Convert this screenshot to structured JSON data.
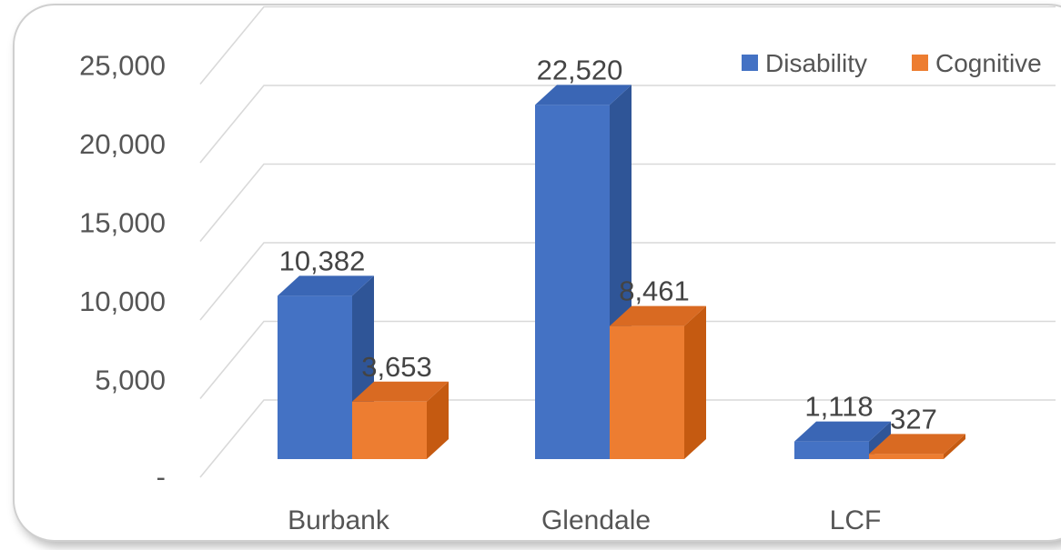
{
  "chart_data": {
    "type": "bar",
    "categories": [
      "Burbank",
      "Glendale",
      "LCF"
    ],
    "series": [
      {
        "name": "Disability",
        "values": [
          10382,
          22520,
          1118
        ],
        "labels": [
          "10,382",
          "22,520",
          "1,118"
        ]
      },
      {
        "name": "Cognitive",
        "values": [
          3653,
          8461,
          327
        ],
        "labels": [
          "3,653",
          "8,461",
          "327"
        ]
      }
    ],
    "ylim": [
      0,
      25000
    ],
    "yticks": [
      {
        "value": 0,
        "label": "-"
      },
      {
        "value": 5000,
        "label": "5,000"
      },
      {
        "value": 10000,
        "label": "10,000"
      },
      {
        "value": 15000,
        "label": "15,000"
      },
      {
        "value": 20000,
        "label": "20,000"
      },
      {
        "value": 25000,
        "label": "25,000"
      }
    ],
    "grid": true,
    "style": "3d-column",
    "legend_position": "top-right",
    "colors": {
      "Disability": {
        "front": "#4472c4",
        "side": "#2f5597",
        "top": "#3a66b5"
      },
      "Cognitive": {
        "front": "#ed7d31",
        "side": "#c55a11",
        "top": "#d96a22"
      }
    }
  }
}
